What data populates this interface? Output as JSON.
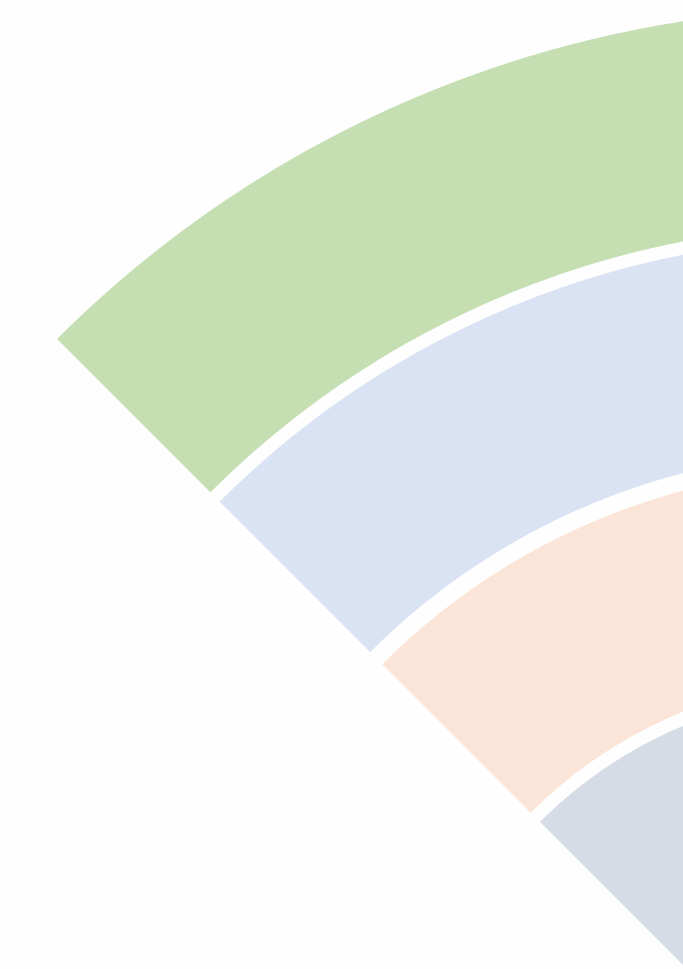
{
  "diagram": {
    "type": "concentric-arc-bands",
    "bands": [
      {
        "id": "band-1",
        "color": "#c5dfb3"
      },
      {
        "id": "band-2",
        "color": "#dae3f3"
      },
      {
        "id": "band-3",
        "color": "#fae5d8"
      },
      {
        "id": "band-4",
        "color": "#d6dce5"
      }
    ],
    "background": "#fefefe"
  }
}
